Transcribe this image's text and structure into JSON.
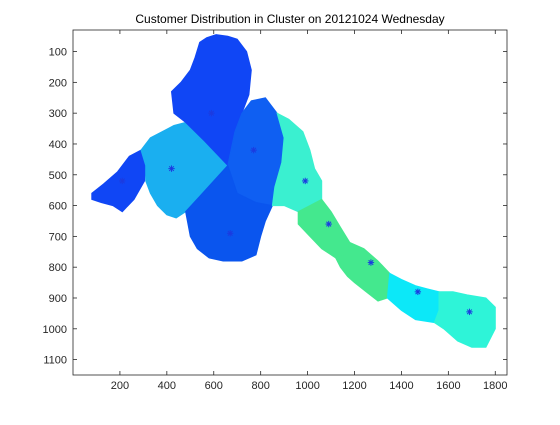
{
  "chart_data": {
    "type": "scatter",
    "title": "Customer Distribution in Cluster on 20121024 Wednesday",
    "xlabel": "",
    "ylabel": "",
    "xlim": [
      0,
      1850
    ],
    "ylim": [
      1150,
      30
    ],
    "y_reversed": true,
    "grid": false,
    "legend": "none",
    "x_ticks": [
      200,
      400,
      600,
      800,
      1000,
      1200,
      1400,
      1600,
      1800
    ],
    "y_ticks": [
      100,
      200,
      300,
      400,
      500,
      600,
      700,
      800,
      900,
      1000,
      1100
    ],
    "regions": [
      {
        "id": "r1",
        "color": "#1046F5",
        "points": [
          [
            80,
            560
          ],
          [
            130,
            530
          ],
          [
            190,
            490
          ],
          [
            240,
            440
          ],
          [
            290,
            420
          ],
          [
            310,
            470
          ],
          [
            305,
            520
          ],
          [
            260,
            580
          ],
          [
            210,
            620
          ],
          [
            170,
            600
          ],
          [
            120,
            590
          ],
          [
            80,
            580
          ]
        ]
      },
      {
        "id": "r2",
        "color": "#1AAFF0",
        "points": [
          [
            290,
            420
          ],
          [
            330,
            380
          ],
          [
            380,
            360
          ],
          [
            430,
            340
          ],
          [
            480,
            330
          ],
          [
            560,
            390
          ],
          [
            660,
            470
          ],
          [
            600,
            520
          ],
          [
            540,
            570
          ],
          [
            480,
            620
          ],
          [
            440,
            640
          ],
          [
            400,
            630
          ],
          [
            360,
            600
          ],
          [
            330,
            560
          ],
          [
            310,
            520
          ],
          [
            310,
            470
          ]
        ]
      },
      {
        "id": "r3",
        "color": "#1046F5",
        "points": [
          [
            420,
            230
          ],
          [
            460,
            200
          ],
          [
            500,
            160
          ],
          [
            520,
            120
          ],
          [
            540,
            70
          ],
          [
            570,
            55
          ],
          [
            610,
            45
          ],
          [
            660,
            50
          ],
          [
            700,
            60
          ],
          [
            740,
            100
          ],
          [
            760,
            160
          ],
          [
            750,
            240
          ],
          [
            720,
            300
          ],
          [
            690,
            360
          ],
          [
            660,
            470
          ],
          [
            560,
            390
          ],
          [
            480,
            330
          ],
          [
            430,
            300
          ]
        ]
      },
      {
        "id": "r4",
        "color": "#0F5FF2",
        "points": [
          [
            660,
            470
          ],
          [
            690,
            360
          ],
          [
            720,
            300
          ],
          [
            760,
            260
          ],
          [
            820,
            250
          ],
          [
            870,
            300
          ],
          [
            900,
            380
          ],
          [
            890,
            460
          ],
          [
            860,
            540
          ],
          [
            850,
            600
          ],
          [
            780,
            590
          ],
          [
            700,
            560
          ]
        ]
      },
      {
        "id": "r5",
        "color": "#0A55EE",
        "points": [
          [
            540,
            570
          ],
          [
            600,
            520
          ],
          [
            660,
            470
          ],
          [
            700,
            560
          ],
          [
            780,
            590
          ],
          [
            850,
            600
          ],
          [
            820,
            650
          ],
          [
            800,
            700
          ],
          [
            780,
            760
          ],
          [
            720,
            780
          ],
          [
            640,
            780
          ],
          [
            580,
            770
          ],
          [
            530,
            740
          ],
          [
            500,
            700
          ],
          [
            480,
            620
          ]
        ]
      },
      {
        "id": "r6",
        "color": "#3AF0D0",
        "points": [
          [
            870,
            300
          ],
          [
            920,
            320
          ],
          [
            980,
            360
          ],
          [
            1010,
            420
          ],
          [
            1030,
            480
          ],
          [
            1060,
            520
          ],
          [
            1060,
            580
          ],
          [
            1010,
            600
          ],
          [
            960,
            620
          ],
          [
            900,
            600
          ],
          [
            850,
            600
          ],
          [
            860,
            540
          ],
          [
            890,
            460
          ],
          [
            900,
            380
          ]
        ]
      },
      {
        "id": "r7",
        "color": "#44E88E",
        "points": [
          [
            1010,
            600
          ],
          [
            1060,
            580
          ],
          [
            1100,
            620
          ],
          [
            1140,
            670
          ],
          [
            1180,
            720
          ],
          [
            1170,
            760
          ],
          [
            1120,
            770
          ],
          [
            1060,
            740
          ],
          [
            1010,
            700
          ],
          [
            960,
            660
          ],
          [
            960,
            620
          ]
        ]
      },
      {
        "id": "r8",
        "color": "#44E88E",
        "points": [
          [
            1120,
            770
          ],
          [
            1170,
            760
          ],
          [
            1180,
            720
          ],
          [
            1240,
            740
          ],
          [
            1300,
            780
          ],
          [
            1350,
            820
          ],
          [
            1340,
            900
          ],
          [
            1300,
            910
          ],
          [
            1250,
            880
          ],
          [
            1200,
            850
          ],
          [
            1170,
            830
          ],
          [
            1140,
            800
          ]
        ]
      },
      {
        "id": "r9",
        "color": "#0CE8F8",
        "points": [
          [
            1350,
            820
          ],
          [
            1400,
            840
          ],
          [
            1460,
            860
          ],
          [
            1510,
            870
          ],
          [
            1560,
            880
          ],
          [
            1560,
            940
          ],
          [
            1540,
            980
          ],
          [
            1460,
            970
          ],
          [
            1400,
            940
          ],
          [
            1340,
            900
          ]
        ]
      },
      {
        "id": "r10",
        "color": "#2EF4D8",
        "points": [
          [
            1560,
            880
          ],
          [
            1620,
            880
          ],
          [
            1680,
            890
          ],
          [
            1760,
            900
          ],
          [
            1800,
            930
          ],
          [
            1800,
            1000
          ],
          [
            1760,
            1060
          ],
          [
            1700,
            1060
          ],
          [
            1640,
            1040
          ],
          [
            1580,
            1000
          ],
          [
            1540,
            980
          ],
          [
            1560,
            940
          ]
        ]
      }
    ],
    "series": [
      {
        "marker": "*",
        "color": "#1C3BE0",
        "x": [
          210,
          420,
          590,
          670,
          770,
          990,
          1090,
          1270,
          1470,
          1690
        ],
        "y": [
          520,
          480,
          300,
          690,
          420,
          520,
          660,
          785,
          880,
          945
        ]
      }
    ]
  }
}
